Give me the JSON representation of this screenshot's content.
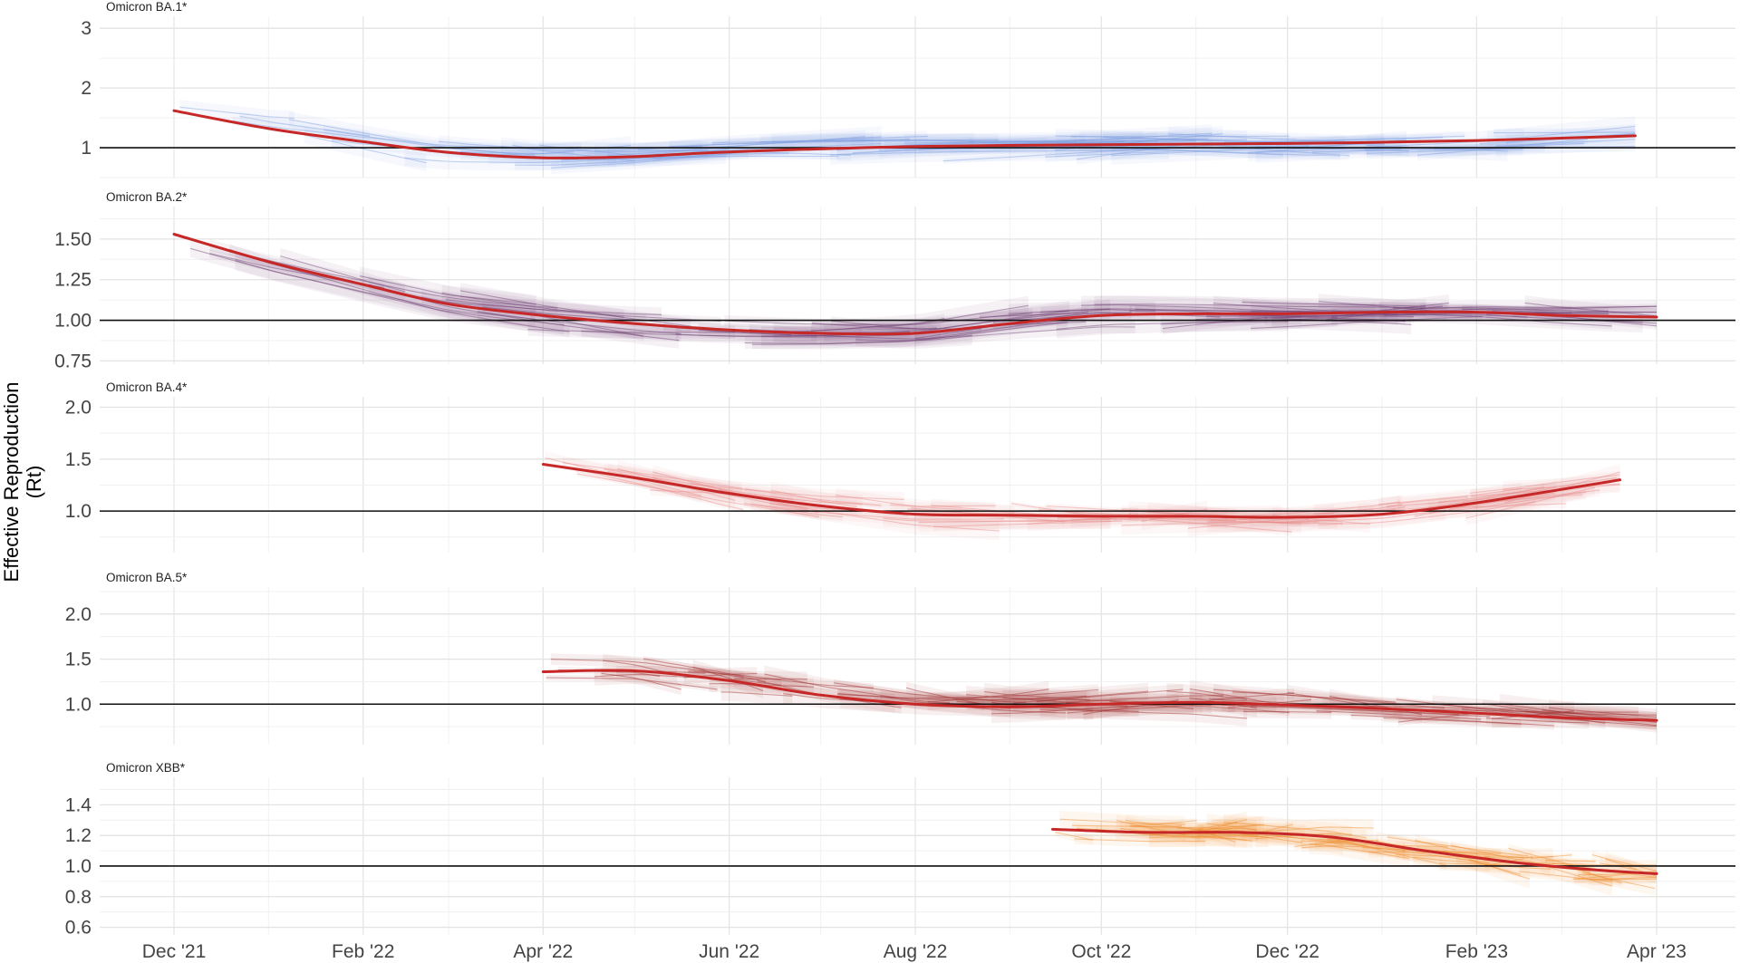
{
  "chart_data": {
    "type": "line",
    "ylabel": "Effective Reproduction (Rt)",
    "ylabel_lines": [
      "Effective Reproduction",
      "(Rt)"
    ],
    "x_tick_labels": [
      "Dec '21",
      "Feb '22",
      "Apr '22",
      "Jun '22",
      "Aug '22",
      "Oct '22",
      "Dec '22",
      "Feb '23",
      "Apr '23"
    ],
    "grid": true,
    "legend": "none",
    "panels": [
      {
        "title": "Omicron BA.1*",
        "color": "#7f9fdf",
        "yticks": [
          1,
          2,
          3
        ],
        "ytick_labels": [
          "1",
          "2",
          "3"
        ],
        "ylim": [
          0.5,
          3.2
        ],
        "reference": 1,
        "series": [
          {
            "x": [
              "2021-12-01",
              "2022-01-01",
              "2022-02-01",
              "2022-03-01",
              "2022-04-01",
              "2022-05-01",
              "2022-06-01",
              "2022-08-01",
              "2022-10-01",
              "2022-12-01",
              "2023-02-01",
              "2023-03-25"
            ],
            "values": [
              1.62,
              1.32,
              1.1,
              0.92,
              0.83,
              0.85,
              0.93,
              1.02,
              1.05,
              1.07,
              1.12,
              1.2
            ]
          }
        ]
      },
      {
        "title": "Omicron BA.2*",
        "color": "#6b3f6f",
        "yticks": [
          0.75,
          1.0,
          1.25,
          1.5
        ],
        "ytick_labels": [
          "0.75",
          "1.00",
          "1.25",
          "1.50"
        ],
        "ylim": [
          0.73,
          1.7
        ],
        "reference": 1,
        "series": [
          {
            "x": [
              "2021-12-01",
              "2022-01-01",
              "2022-02-01",
              "2022-03-01",
              "2022-04-01",
              "2022-05-01",
              "2022-06-01",
              "2022-07-01",
              "2022-08-01",
              "2022-09-01",
              "2022-10-01",
              "2022-11-01",
              "2022-12-01",
              "2023-01-01",
              "2023-02-01",
              "2023-03-01",
              "2023-04-01"
            ],
            "values": [
              1.53,
              1.36,
              1.22,
              1.1,
              1.03,
              0.98,
              0.94,
              0.92,
              0.92,
              0.98,
              1.03,
              1.04,
              1.04,
              1.05,
              1.05,
              1.03,
              1.02
            ]
          }
        ]
      },
      {
        "title": "Omicron BA.4*",
        "color": "#e98a88",
        "yticks": [
          1.0,
          1.5,
          2.0
        ],
        "ytick_labels": [
          "1.0",
          "1.5",
          "2.0"
        ],
        "ylim": [
          0.6,
          2.1
        ],
        "reference": 1,
        "series": [
          {
            "x": [
              "2022-04-01",
              "2022-05-01",
              "2022-06-01",
              "2022-07-01",
              "2022-08-01",
              "2022-09-01",
              "2022-10-01",
              "2022-11-01",
              "2022-12-01",
              "2023-01-01",
              "2023-02-01",
              "2023-03-20"
            ],
            "values": [
              1.45,
              1.32,
              1.17,
              1.05,
              0.97,
              0.96,
              0.95,
              0.95,
              0.94,
              0.97,
              1.08,
              1.3
            ]
          }
        ]
      },
      {
        "title": "Omicron BA.5*",
        "color": "#9e2a2a",
        "yticks": [
          1.0,
          1.5,
          2.0
        ],
        "ytick_labels": [
          "1.0",
          "1.5",
          "2.0"
        ],
        "ylim": [
          0.55,
          2.3
        ],
        "reference": 1,
        "series": [
          {
            "x": [
              "2022-04-01",
              "2022-05-01",
              "2022-06-01",
              "2022-07-01",
              "2022-08-01",
              "2022-09-01",
              "2022-10-01",
              "2022-11-01",
              "2022-12-01",
              "2023-01-01",
              "2023-02-01",
              "2023-03-01",
              "2023-04-01"
            ],
            "values": [
              1.36,
              1.37,
              1.26,
              1.1,
              1.0,
              0.97,
              1.0,
              1.02,
              0.99,
              0.95,
              0.9,
              0.85,
              0.82
            ]
          }
        ]
      },
      {
        "title": "Omicron XBB*",
        "color": "#ef8c2d",
        "yticks": [
          0.6,
          0.8,
          1.0,
          1.2,
          1.4
        ],
        "ytick_labels": [
          "0.6",
          "0.8",
          "1.0",
          "1.2",
          "1.4"
        ],
        "ylim": [
          0.55,
          1.58
        ],
        "reference": 1,
        "series": [
          {
            "x": [
              "2022-09-15",
              "2022-10-15",
              "2022-11-15",
              "2022-12-15",
              "2023-01-15",
              "2023-02-15",
              "2023-03-15",
              "2023-04-01"
            ],
            "values": [
              1.24,
              1.22,
              1.22,
              1.19,
              1.1,
              1.02,
              0.97,
              0.95
            ]
          }
        ]
      }
    ]
  }
}
